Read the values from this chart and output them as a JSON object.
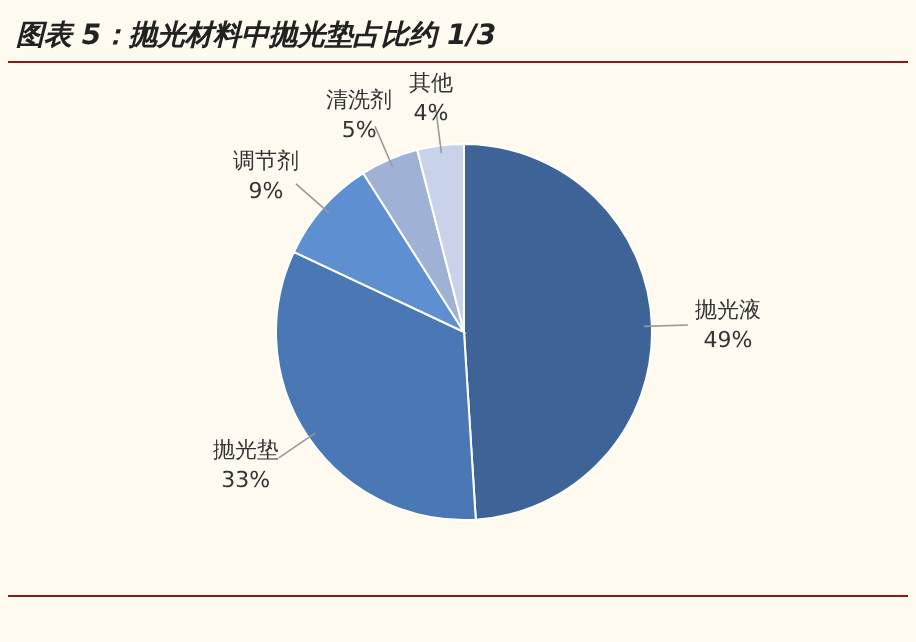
{
  "chart_data": {
    "type": "pie",
    "title": "图表 5：抛光材料中抛光垫占比约 1/3",
    "categories": [
      "抛光液",
      "抛光垫",
      "调节剂",
      "清洗剂",
      "其他"
    ],
    "values": [
      49,
      33,
      9,
      5,
      4
    ],
    "value_labels": [
      "49%",
      "33%",
      "9%",
      "5%",
      "4%"
    ],
    "colors": [
      "#3d6397",
      "#4a78b4",
      "#5e8fd0",
      "#9fb2d6",
      "#c8d2e8"
    ]
  }
}
